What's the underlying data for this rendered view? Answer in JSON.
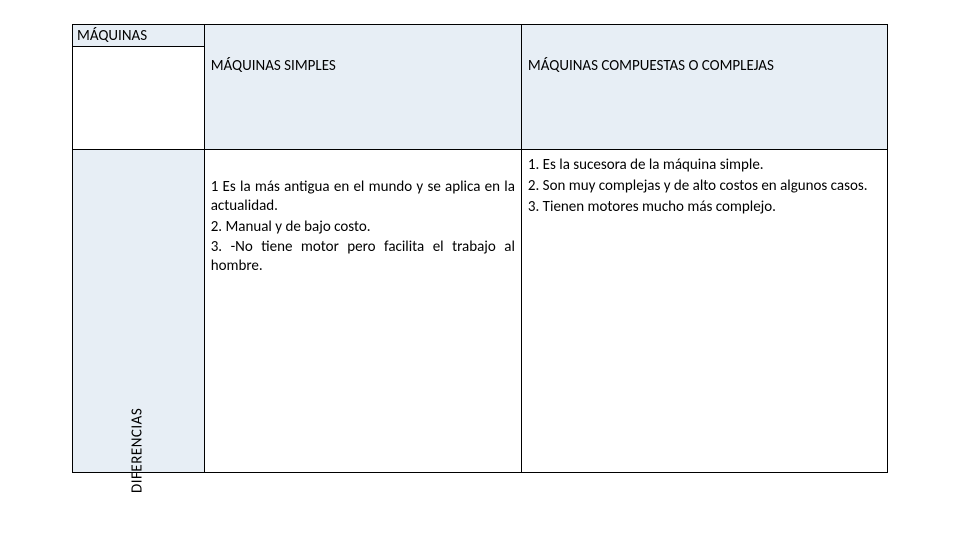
{
  "table": {
    "colors": {
      "header_bg": "#e7eef5",
      "body_bg": "#ffffff",
      "border": "#000000",
      "text": "#000000"
    },
    "font": {
      "family": "Calibri",
      "size_pt": 11
    },
    "title": "MÁQUINAS",
    "columns": {
      "simples": "MÁQUINAS SIMPLES",
      "compuestas": "MÁQUINAS COMPUESTAS O COMPLEJAS"
    },
    "row_label": "DIFERENCIAS",
    "body": {
      "simples": "1 Es la más antigua en el mundo y se aplica en la actualidad.\n2. Manual y de bajo costo.\n3. -No tiene motor pero facilita el trabajo al hombre.",
      "compuestas": "1.        Es la sucesora de la máquina simple.\n2.        Son muy complejas y de alto costos en algunos casos.\n3.        Tienen   motores   mucho   más complejo."
    }
  }
}
